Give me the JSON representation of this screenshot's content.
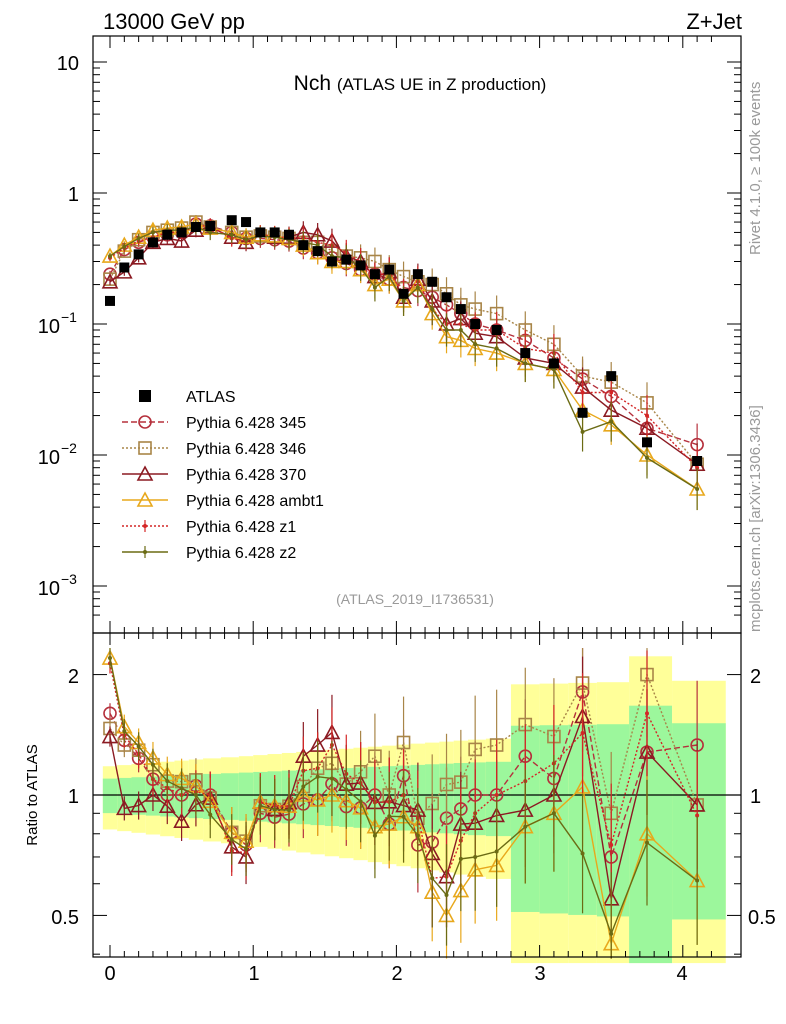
{
  "header": {
    "left": "13000 GeV pp",
    "right": "Z+Jet",
    "title_main": "Nch",
    "title_sub": "(ATLAS UE in Z production)",
    "side_top": "Rivet 4.1.0, ≥ 100k events",
    "side_bottom": "mcplots.cern.ch [arXiv:1306.3436]",
    "analysis_id": "(ATLAS_2019_I1736531)"
  },
  "axes": {
    "main_y_ticks": [
      "10",
      "1",
      "10",
      "10",
      "10"
    ],
    "main_y_exps": [
      "",
      "",
      "−1",
      "−2",
      "−3"
    ],
    "ratio_ylabel": "Ratio to ATLAS",
    "ratio_y_ticks": [
      "2",
      "1",
      "0.5"
    ],
    "x_ticks": [
      "0",
      "1",
      "2",
      "3",
      "4"
    ]
  },
  "legend": [
    "ATLAS",
    "Pythia 6.428 345",
    "Pythia 6.428 346",
    "Pythia 6.428 370",
    "Pythia 6.428 ambt1",
    "Pythia 6.428 z1",
    "Pythia 6.428 z2"
  ],
  "colors": {
    "atlas": "#000000",
    "p345": "#b5303c",
    "p346": "#a88548",
    "p370": "#8b1a22",
    "ambt1": "#e8a81c",
    "z1": "#d42626",
    "z2": "#6b6b14",
    "band_inner": "#9cf79c",
    "band_outer": "#ffff99"
  },
  "chart_data": {
    "type": "line",
    "title": "Nch (ATLAS UE in Z production)",
    "xlabel": "",
    "ylabel": "",
    "main_scale": "log",
    "main_ylim": [
      0.0006,
      15
    ],
    "ratio_ylim": [
      0.38,
      2.35
    ],
    "xlim": [
      -0.1,
      4.4
    ],
    "x": [
      0,
      0.1,
      0.2,
      0.3,
      0.4,
      0.5,
      0.6,
      0.7,
      0.85,
      0.95,
      1.05,
      1.15,
      1.25,
      1.35,
      1.45,
      1.55,
      1.65,
      1.75,
      1.85,
      1.95,
      2.05,
      2.15,
      2.25,
      2.35,
      2.45,
      2.55,
      2.7,
      2.9,
      3.1,
      3.3,
      3.5,
      3.75,
      4.1
    ],
    "atlas": [
      0.15,
      0.27,
      0.34,
      0.42,
      0.48,
      0.5,
      0.55,
      0.56,
      0.62,
      0.6,
      0.5,
      0.5,
      0.48,
      0.4,
      0.36,
      0.3,
      0.31,
      0.28,
      0.24,
      0.26,
      0.17,
      0.24,
      0.21,
      0.16,
      0.13,
      0.1,
      0.09,
      0.06,
      0.05,
      0.021,
      0.04,
      0.0125,
      0.009
    ],
    "series": [
      {
        "name": "Pythia 6.428 345",
        "key": "p345",
        "style": "dashed",
        "marker": "circle",
        "values": [
          0.24,
          0.37,
          0.42,
          0.46,
          0.48,
          0.5,
          0.58,
          0.56,
          0.5,
          0.45,
          0.45,
          0.44,
          0.43,
          0.38,
          0.35,
          0.32,
          0.29,
          0.26,
          0.24,
          0.22,
          0.19,
          0.18,
          0.16,
          0.14,
          0.12,
          0.1,
          0.09,
          0.075,
          0.055,
          0.038,
          0.028,
          0.016,
          0.012
        ]
      },
      {
        "name": "Pythia 6.428 346",
        "key": "p346",
        "style": "dotted",
        "marker": "square",
        "values": [
          0.22,
          0.36,
          0.44,
          0.5,
          0.52,
          0.54,
          0.6,
          0.55,
          0.5,
          0.46,
          0.47,
          0.46,
          0.45,
          0.42,
          0.42,
          0.36,
          0.33,
          0.32,
          0.3,
          0.26,
          0.23,
          0.21,
          0.2,
          0.17,
          0.14,
          0.13,
          0.12,
          0.09,
          0.07,
          0.04,
          0.036,
          0.025,
          0.0085
        ]
      },
      {
        "name": "Pythia 6.428 370",
        "key": "p370",
        "style": "solid",
        "marker": "triangle",
        "values": [
          0.21,
          0.25,
          0.32,
          0.42,
          0.45,
          0.43,
          0.52,
          0.55,
          0.46,
          0.42,
          0.48,
          0.46,
          0.46,
          0.5,
          0.48,
          0.43,
          0.33,
          0.3,
          0.23,
          0.25,
          0.16,
          0.22,
          0.15,
          0.1,
          0.11,
          0.085,
          0.08,
          0.055,
          0.05,
          0.033,
          0.022,
          0.016,
          0.0085
        ]
      },
      {
        "name": "Pythia 6.428 ambt1",
        "key": "ambt1",
        "style": "solid",
        "marker": "triangle",
        "values": [
          0.33,
          0.4,
          0.46,
          0.52,
          0.54,
          0.55,
          0.58,
          0.54,
          0.5,
          0.46,
          0.48,
          0.47,
          0.45,
          0.4,
          0.35,
          0.3,
          0.3,
          0.26,
          0.2,
          0.22,
          0.15,
          0.2,
          0.12,
          0.08,
          0.075,
          0.065,
          0.06,
          0.05,
          0.045,
          0.022,
          0.017,
          0.01,
          0.0055
        ]
      },
      {
        "name": "Pythia 6.428 z1",
        "key": "z1",
        "style": "dotted",
        "marker": "dot",
        "values": [
          0.32,
          0.38,
          0.43,
          0.46,
          0.5,
          0.5,
          0.56,
          0.56,
          0.45,
          0.43,
          0.48,
          0.47,
          0.45,
          0.46,
          0.42,
          0.4,
          0.35,
          0.3,
          0.23,
          0.25,
          0.17,
          0.21,
          0.13,
          0.1,
          0.1,
          0.09,
          0.09,
          0.065,
          0.06,
          0.03,
          0.03,
          0.02,
          0.008
        ]
      },
      {
        "name": "Pythia 6.428 z2",
        "key": "z2",
        "style": "solid",
        "marker": "dot",
        "values": [
          0.33,
          0.39,
          0.45,
          0.5,
          0.52,
          0.52,
          0.55,
          0.5,
          0.48,
          0.44,
          0.47,
          0.46,
          0.44,
          0.42,
          0.4,
          0.33,
          0.32,
          0.27,
          0.19,
          0.23,
          0.15,
          0.19,
          0.13,
          0.09,
          0.09,
          0.07,
          0.065,
          0.05,
          0.045,
          0.015,
          0.018,
          0.0095,
          0.0055
        ]
      }
    ]
  }
}
